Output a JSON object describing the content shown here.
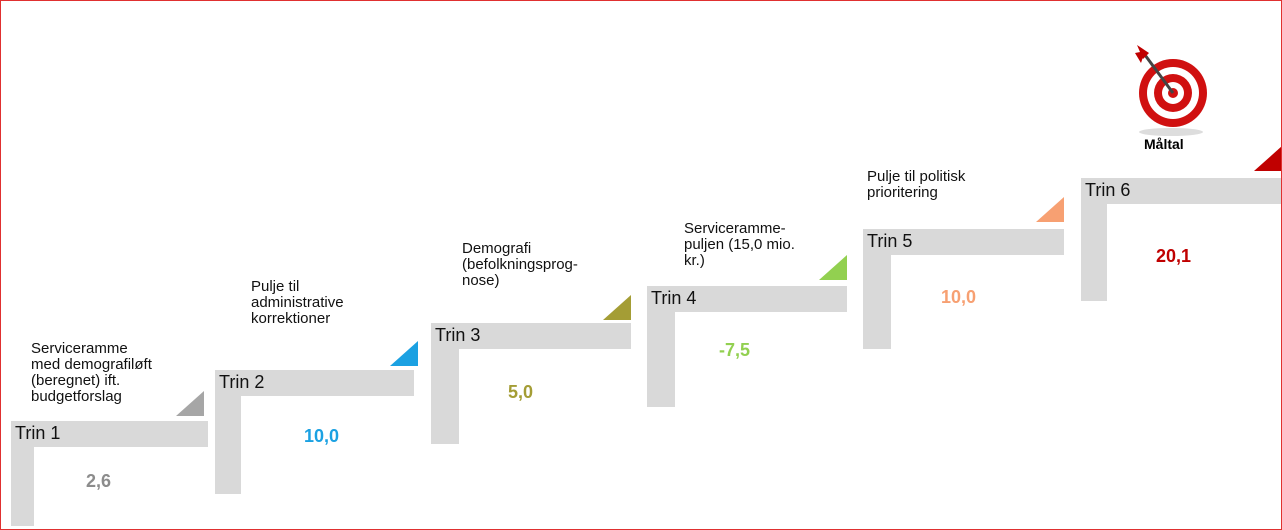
{
  "steps": [
    {
      "label": "Trin 1",
      "description": [
        "Serviceramme",
        "med demografiløft",
        "(beregnet) ift.",
        "budgetforslag"
      ],
      "value": "2,6",
      "color": "#a6a6a6",
      "value_color": "#8c8c8c"
    },
    {
      "label": "Trin 2",
      "description": [
        "Pulje til",
        "administrative",
        "korrektioner"
      ],
      "value": "10,0",
      "color": "#1ba1e2",
      "value_color": "#1ba1e2"
    },
    {
      "label": "Trin 3",
      "description": [
        "Demografi",
        "(befolkningsprog-",
        "nose)"
      ],
      "value": "5,0",
      "color": "#a49d35",
      "value_color": "#a49d35"
    },
    {
      "label": "Trin 4",
      "description": [
        "Serviceramme-",
        "puljen (15,0 mio.",
        "kr.)"
      ],
      "value": "-7,5",
      "color": "#92d050",
      "value_color": "#92d050"
    },
    {
      "label": "Trin 5",
      "description": [
        "Pulje til politisk",
        "prioritering"
      ],
      "value": "10,0",
      "color": "#f7a072",
      "value_color": "#f7a072"
    },
    {
      "label": "Trin 6",
      "description": [],
      "value": "20,1",
      "color": "#c00000",
      "value_color": "#c00000"
    }
  ],
  "goal": {
    "label": "Måltal"
  }
}
